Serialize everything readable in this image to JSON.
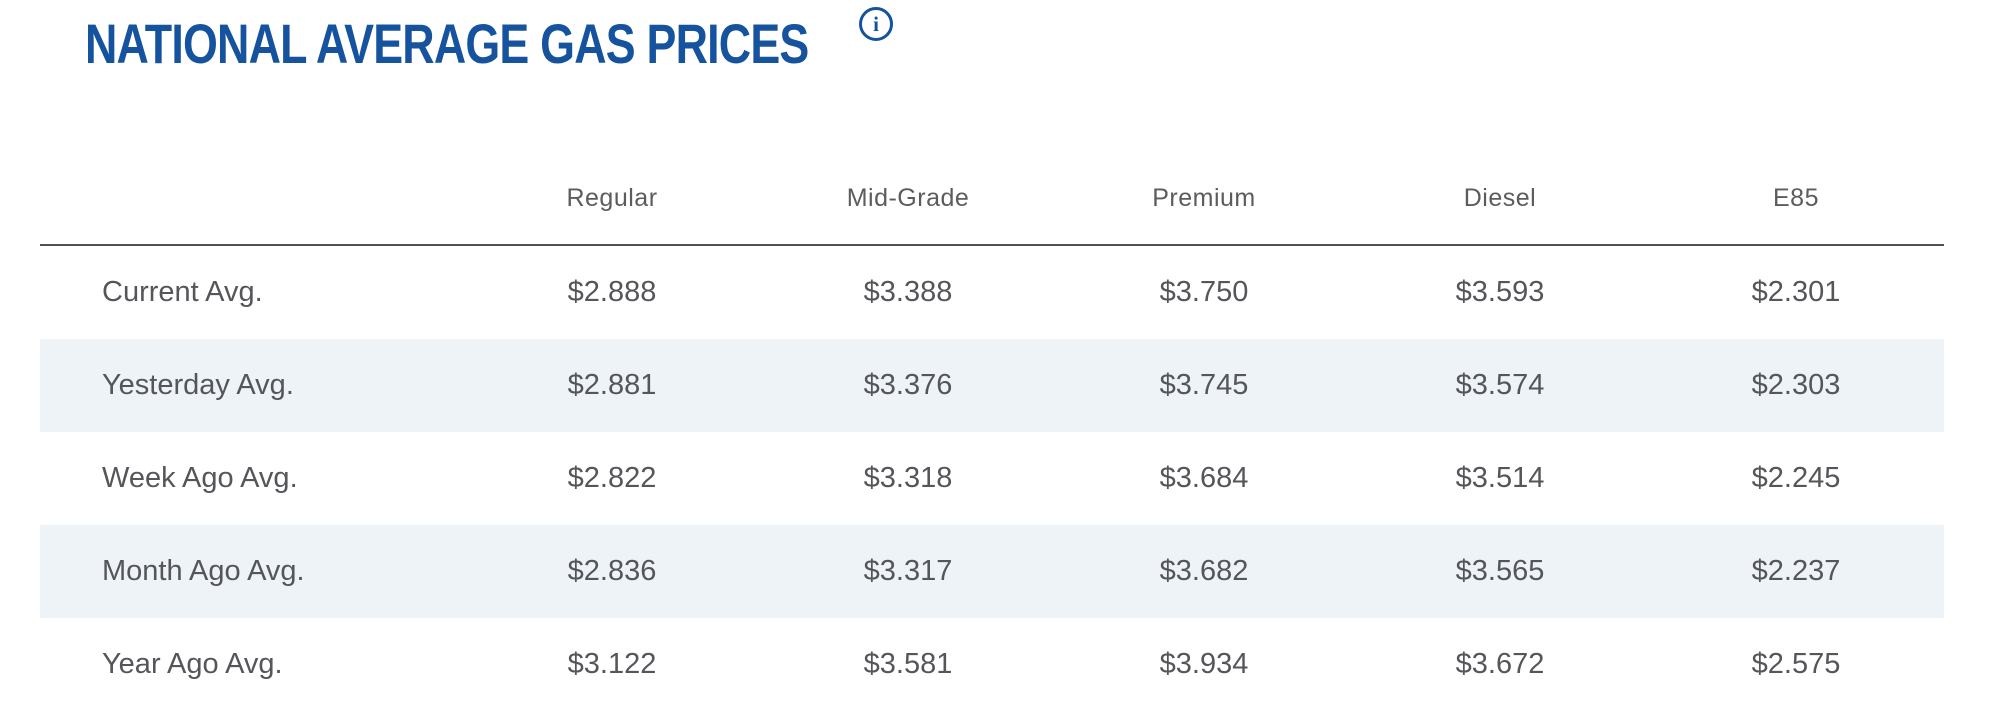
{
  "page": {
    "title": "NATIONAL AVERAGE GAS PRICES"
  },
  "icons": {
    "info_icon_glyph": "i"
  },
  "colors": {
    "title_blue": "#16539e",
    "cell_text_gray": "#55565a",
    "header_text_gray": "#5b5c5e",
    "stripe_background": "#eef3f8",
    "header_divider": "#515254"
  },
  "table": {
    "columns": [
      "Regular",
      "Mid-Grade",
      "Premium",
      "Diesel",
      "E85"
    ],
    "rows": [
      {
        "label": "Current Avg.",
        "values": [
          "$2.888",
          "$3.388",
          "$3.750",
          "$3.593",
          "$2.301"
        ]
      },
      {
        "label": "Yesterday Avg.",
        "values": [
          "$2.881",
          "$3.376",
          "$3.745",
          "$3.574",
          "$2.303"
        ]
      },
      {
        "label": "Week Ago Avg.",
        "values": [
          "$2.822",
          "$3.318",
          "$3.684",
          "$3.514",
          "$2.245"
        ]
      },
      {
        "label": "Month Ago Avg.",
        "values": [
          "$2.836",
          "$3.317",
          "$3.682",
          "$3.565",
          "$2.237"
        ]
      },
      {
        "label": "Year Ago Avg.",
        "values": [
          "$3.122",
          "$3.581",
          "$3.934",
          "$3.672",
          "$2.575"
        ]
      }
    ]
  }
}
